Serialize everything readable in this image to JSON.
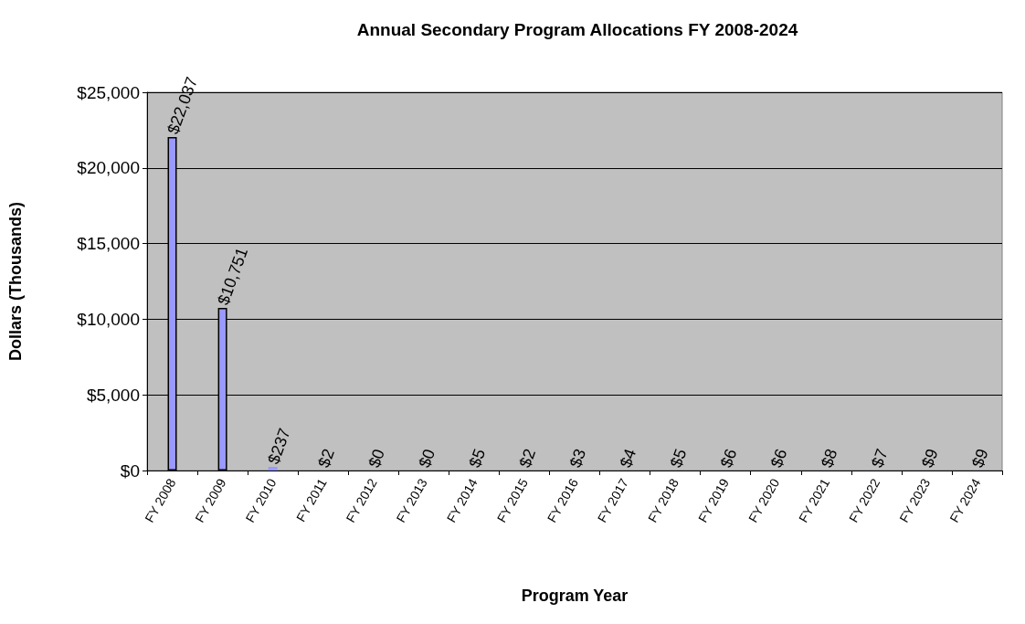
{
  "chart_data": {
    "type": "bar",
    "title": "Annual Secondary Program Allocations FY 2008-2024",
    "xlabel": "Program Year",
    "ylabel": "Dollars (Thousands)",
    "categories": [
      "FY 2008",
      "FY 2009",
      "FY 2010",
      "FY 2011",
      "FY 2012",
      "FY 2013",
      "FY 2014",
      "FY 2015",
      "FY 2016",
      "FY 2017",
      "FY 2018",
      "FY 2019",
      "FY 2020",
      "FY 2021",
      "FY 2022",
      "FY 2023",
      "FY 2024"
    ],
    "values": [
      22037,
      10751,
      237,
      2,
      0,
      0,
      5,
      2,
      3,
      4,
      5,
      6,
      6,
      8,
      7,
      9,
      9
    ],
    "value_labels": [
      "$22,037",
      "$10,751",
      "$237",
      "$2",
      "$0",
      "$0",
      "$5",
      "$2",
      "$3",
      "$4",
      "$5",
      "$6",
      "$6",
      "$8",
      "$7",
      "$9",
      "$9"
    ],
    "color": "#9999ff",
    "ylim": [
      0,
      25000
    ],
    "yticks": [
      {
        "value": 0,
        "label": "$0"
      },
      {
        "value": 5000,
        "label": "$5,000"
      },
      {
        "value": 10000,
        "label": "$10,000"
      },
      {
        "value": 15000,
        "label": "$15,000"
      },
      {
        "value": 20000,
        "label": "$20,000"
      },
      {
        "value": 25000,
        "label": "$25,000"
      }
    ],
    "grid": "y"
  }
}
